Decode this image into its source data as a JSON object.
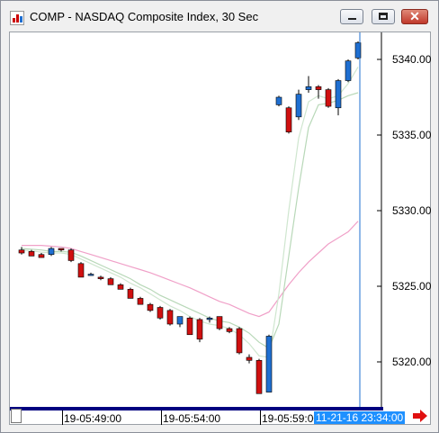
{
  "window": {
    "title": "COMP - NASDAQ Composite Index, 30 Sec",
    "app_icon": "chart-app-icon",
    "buttons": {
      "minimize": "minimize-icon",
      "maximize": "maximize-icon",
      "close_glyph": "✕"
    }
  },
  "chart_data": {
    "type": "candlestick",
    "yticks": [
      "5340.00",
      "5335.00",
      "5330.00",
      "5325.00",
      "5320.00"
    ],
    "ytick_values": [
      5340,
      5335,
      5330,
      5325,
      5320
    ],
    "ylim": [
      5317.8,
      5342.3
    ],
    "xticks": [
      "19-05:49:00",
      "19-05:54:00",
      "19-05:59:00"
    ],
    "cursor_label": "11-21-16 23:34:00",
    "up_color": "#1f6fd1",
    "down_color": "#d01010",
    "candles": [
      {
        "o": 5327.4,
        "h": 5327.6,
        "l": 5327.1,
        "c": 5327.2
      },
      {
        "o": 5327.3,
        "h": 5327.4,
        "l": 5327.0,
        "c": 5327.0
      },
      {
        "o": 5327.1,
        "h": 5327.2,
        "l": 5326.9,
        "c": 5326.9
      },
      {
        "o": 5327.1,
        "h": 5327.6,
        "l": 5327.0,
        "c": 5327.5
      },
      {
        "o": 5327.5,
        "h": 5327.5,
        "l": 5327.3,
        "c": 5327.4
      },
      {
        "o": 5327.4,
        "h": 5327.5,
        "l": 5326.6,
        "c": 5326.7
      },
      {
        "o": 5326.5,
        "h": 5326.6,
        "l": 5325.6,
        "c": 5325.6
      },
      {
        "o": 5325.8,
        "h": 5325.9,
        "l": 5325.7,
        "c": 5325.8
      },
      {
        "o": 5325.6,
        "h": 5325.7,
        "l": 5325.4,
        "c": 5325.5
      },
      {
        "o": 5325.5,
        "h": 5325.6,
        "l": 5325.1,
        "c": 5325.1
      },
      {
        "o": 5325.1,
        "h": 5325.2,
        "l": 5324.8,
        "c": 5324.8
      },
      {
        "o": 5324.8,
        "h": 5324.9,
        "l": 5324.2,
        "c": 5324.2
      },
      {
        "o": 5324.2,
        "h": 5324.3,
        "l": 5323.8,
        "c": 5323.8
      },
      {
        "o": 5323.8,
        "h": 5323.9,
        "l": 5323.3,
        "c": 5323.4
      },
      {
        "o": 5323.6,
        "h": 5323.7,
        "l": 5322.8,
        "c": 5322.9
      },
      {
        "o": 5323.4,
        "h": 5323.5,
        "l": 5322.4,
        "c": 5322.5
      },
      {
        "o": 5322.5,
        "h": 5323.0,
        "l": 5322.3,
        "c": 5323.0
      },
      {
        "o": 5322.9,
        "h": 5323.0,
        "l": 5321.8,
        "c": 5321.8
      },
      {
        "o": 5322.8,
        "h": 5322.9,
        "l": 5321.3,
        "c": 5321.5
      },
      {
        "o": 5322.8,
        "h": 5323.0,
        "l": 5322.6,
        "c": 5322.9
      },
      {
        "o": 5323.0,
        "h": 5323.0,
        "l": 5322.1,
        "c": 5322.2
      },
      {
        "o": 5322.2,
        "h": 5322.3,
        "l": 5321.9,
        "c": 5322.0
      },
      {
        "o": 5322.2,
        "h": 5322.3,
        "l": 5320.5,
        "c": 5320.6
      },
      {
        "o": 5320.3,
        "h": 5320.5,
        "l": 5319.9,
        "c": 5320.1
      },
      {
        "o": 5320.1,
        "h": 5320.2,
        "l": 5317.9,
        "c": 5317.9
      },
      {
        "o": 5318.0,
        "h": 5321.8,
        "l": 5318.0,
        "c": 5321.7
      },
      {
        "o": 5337.0,
        "h": 5337.6,
        "l": 5336.9,
        "c": 5337.5
      },
      {
        "o": 5336.8,
        "h": 5336.9,
        "l": 5335.1,
        "c": 5335.2
      },
      {
        "o": 5336.2,
        "h": 5338.0,
        "l": 5336.0,
        "c": 5337.7
      },
      {
        "o": 5338.0,
        "h": 5338.9,
        "l": 5337.8,
        "c": 5338.2
      },
      {
        "o": 5338.2,
        "h": 5338.3,
        "l": 5337.4,
        "c": 5338.0
      },
      {
        "o": 5338.0,
        "h": 5338.1,
        "l": 5336.8,
        "c": 5336.9
      },
      {
        "o": 5336.8,
        "h": 5338.7,
        "l": 5336.3,
        "c": 5338.6
      },
      {
        "o": 5338.6,
        "h": 5340.0,
        "l": 5338.5,
        "c": 5339.9
      },
      {
        "o": 5340.1,
        "h": 5341.2,
        "l": 5340.0,
        "c": 5341.1
      }
    ],
    "ma_fast": [
      5327.4,
      5327.35,
      5327.25,
      5327.2,
      5327.2,
      5327.1,
      5326.8,
      5326.5,
      5326.2,
      5325.9,
      5325.6,
      5325.2,
      5324.9,
      5324.5,
      5324.1,
      5323.7,
      5323.4,
      5323.0,
      5322.7,
      5322.5,
      5322.4,
      5322.2,
      5321.8,
      5321.2,
      5320.4,
      5320.3,
      5324.5,
      5330.0,
      5334.8,
      5337.2,
      5337.6,
      5337.4,
      5337.6,
      5338.4,
      5339.5
    ],
    "ma_mid": [
      5327.5,
      5327.45,
      5327.4,
      5327.3,
      5327.3,
      5327.25,
      5327.0,
      5326.7,
      5326.4,
      5326.1,
      5325.8,
      5325.5,
      5325.1,
      5324.8,
      5324.4,
      5324.1,
      5323.8,
      5323.5,
      5323.2,
      5322.9,
      5322.7,
      5322.6,
      5322.3,
      5321.9,
      5321.3,
      5320.9,
      5322.5,
      5327.0,
      5331.5,
      5335.5,
      5337.0,
      5337.1,
      5337.3,
      5337.6,
      5337.8
    ],
    "ma_slow": [
      5327.7,
      5327.7,
      5327.7,
      5327.65,
      5327.6,
      5327.5,
      5327.3,
      5327.1,
      5326.9,
      5326.7,
      5326.5,
      5326.3,
      5326.1,
      5325.9,
      5325.65,
      5325.4,
      5325.15,
      5324.9,
      5324.6,
      5324.3,
      5324.0,
      5323.8,
      5323.5,
      5323.2,
      5323.0,
      5323.3,
      5324.2,
      5325.1,
      5325.9,
      5326.6,
      5327.2,
      5327.8,
      5328.2,
      5328.6,
      5329.3
    ]
  }
}
